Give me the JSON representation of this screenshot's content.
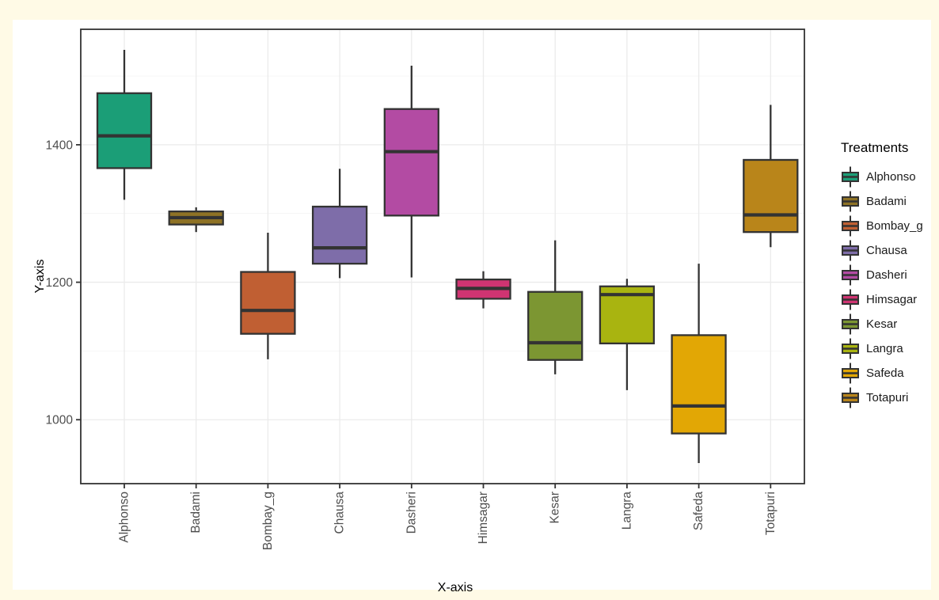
{
  "page": {
    "background_color": "#FFFAE6",
    "figure_background_color": "#FFFFFF"
  },
  "chart_data": {
    "type": "boxplot",
    "xlabel": "X-axis",
    "ylabel": "Y-axis",
    "legend_title": "Treatments",
    "categories": [
      "Alphonso",
      "Badami",
      "Bombay_g",
      "Chausa",
      "Dasheri",
      "Himsagar",
      "Kesar",
      "Langra",
      "Safeda",
      "Totapuri"
    ],
    "series": [
      {
        "name": "Alphonso",
        "color": "#1B9E77",
        "min": 1320,
        "q1": 1366,
        "median": 1413,
        "q3": 1475,
        "max": 1538
      },
      {
        "name": "Badami",
        "color": "#8E7225",
        "min": 1273,
        "q1": 1284,
        "median": 1294,
        "q3": 1303,
        "max": 1309
      },
      {
        "name": "Bombay_g",
        "color": "#C05F33",
        "min": 1088,
        "q1": 1125,
        "median": 1159,
        "q3": 1215,
        "max": 1272
      },
      {
        "name": "Chausa",
        "color": "#7E6DA9",
        "min": 1206,
        "q1": 1227,
        "median": 1250,
        "q3": 1310,
        "max": 1365
      },
      {
        "name": "Dasheri",
        "color": "#B34BA3",
        "min": 1207,
        "q1": 1297,
        "median": 1390,
        "q3": 1452,
        "max": 1515
      },
      {
        "name": "Himsagar",
        "color": "#D03472",
        "min": 1162,
        "q1": 1176,
        "median": 1191,
        "q3": 1204,
        "max": 1216
      },
      {
        "name": "Kesar",
        "color": "#7C9632",
        "min": 1066,
        "q1": 1087,
        "median": 1112,
        "q3": 1186,
        "max": 1261
      },
      {
        "name": "Langra",
        "color": "#A9B410",
        "min": 1043,
        "q1": 1111,
        "median": 1182,
        "q3": 1194,
        "max": 1205
      },
      {
        "name": "Safeda",
        "color": "#E2A705",
        "min": 937,
        "q1": 980,
        "median": 1020,
        "q3": 1123,
        "max": 1227
      },
      {
        "name": "Totapuri",
        "color": "#B9851A",
        "min": 1251,
        "q1": 1273,
        "median": 1298,
        "q3": 1378,
        "max": 1458
      }
    ],
    "y_ticks": [
      1000,
      1200,
      1400
    ],
    "y_minor_ticks": [
      1100,
      1300,
      1500
    ],
    "ylim": [
      907,
      1568
    ],
    "grid": true,
    "legend_position": "right",
    "colors": {
      "box_stroke": "#333333",
      "panel_border": "#333333",
      "grid_major": "#EBEBEB",
      "grid_minor": "#F4F4F4",
      "tick_label": "#4D4D4D",
      "axis_title": "#000000"
    }
  }
}
